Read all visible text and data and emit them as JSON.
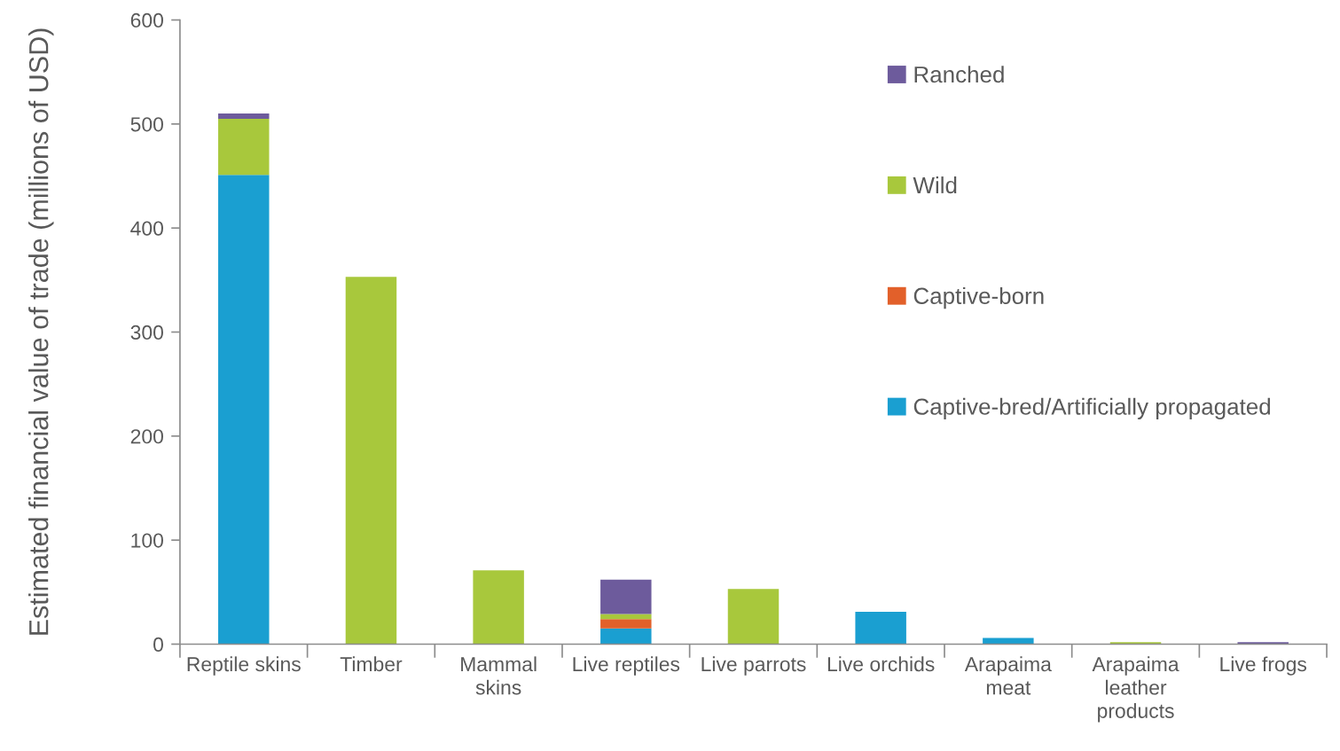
{
  "chart_data": {
    "type": "bar",
    "stacked": true,
    "ylabel": "Estimated financial value of trade (millions of USD)",
    "categories": [
      "Reptile skins",
      "Timber",
      "Mammal\nskins",
      "Live reptiles",
      "Live parrots",
      "Live orchids",
      "Arapaima\nmeat",
      "Arapaima\nleather\nproducts",
      "Live frogs"
    ],
    "series": [
      {
        "name": "Captive-bred/Artificially propagated",
        "color": "#1a9fd1",
        "values": [
          451,
          null,
          null,
          15,
          null,
          31,
          6,
          null,
          null
        ]
      },
      {
        "name": "Captive-born",
        "color": "#e2602a",
        "values": [
          null,
          null,
          null,
          9,
          null,
          null,
          null,
          null,
          null
        ]
      },
      {
        "name": "Wild",
        "color": "#a8c83c",
        "values": [
          54,
          353,
          71,
          5,
          53,
          null,
          null,
          2,
          null
        ]
      },
      {
        "name": "Ranched",
        "color": "#6d5b9c",
        "values": [
          5,
          null,
          null,
          33,
          null,
          null,
          null,
          null,
          2
        ]
      }
    ],
    "ylim": [
      0,
      600
    ],
    "yticks": [
      0,
      100,
      200,
      300,
      400,
      500,
      600
    ],
    "grid": false,
    "legend": "top right"
  }
}
